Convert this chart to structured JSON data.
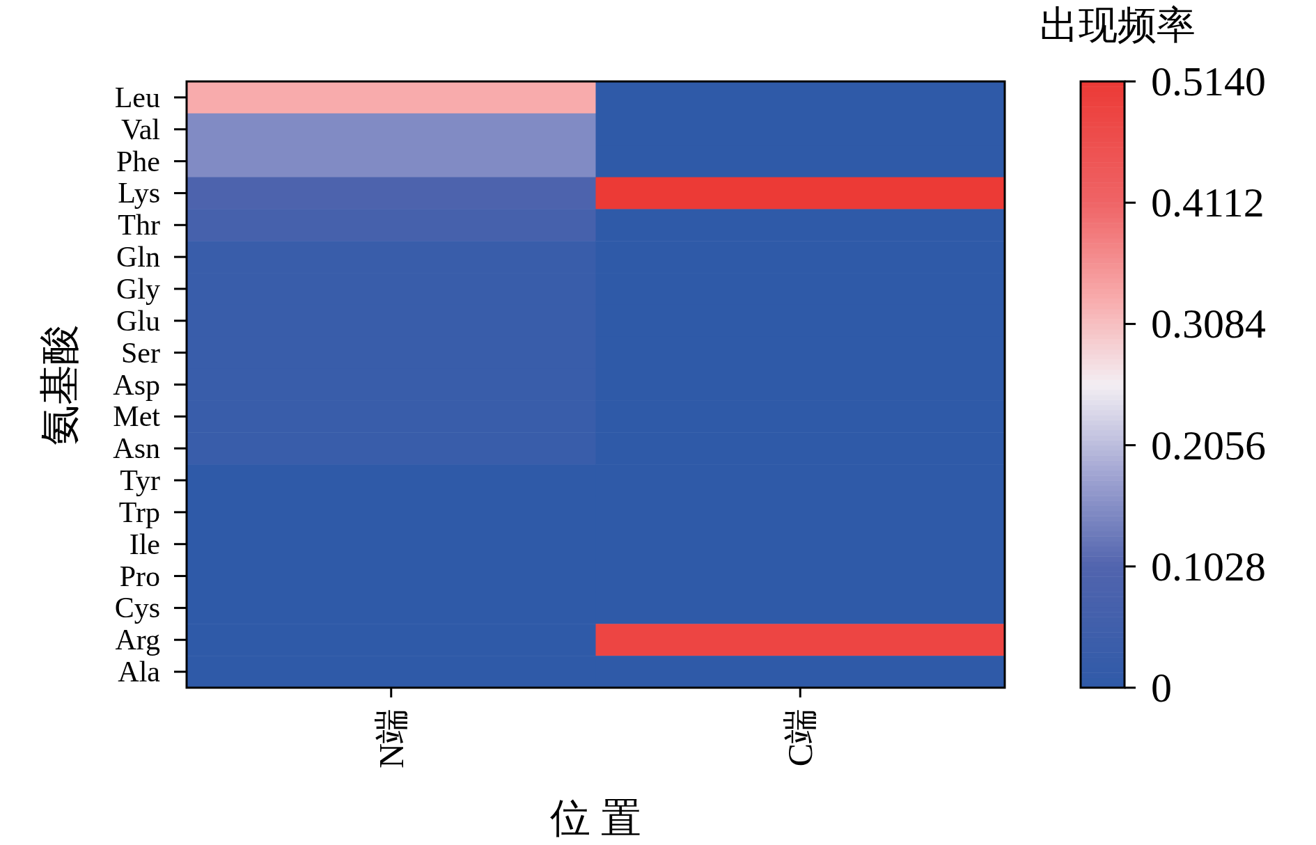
{
  "chart_data": {
    "type": "heatmap",
    "xlabel": "位 置",
    "ylabel": "氨基酸",
    "clabel": "出现频率",
    "categories": [
      "N端",
      "C端"
    ],
    "y_categories": [
      "Leu",
      "Val",
      "Phe",
      "Lys",
      "Thr",
      "Gln",
      "Gly",
      "Glu",
      "Ser",
      "Asp",
      "Met",
      "Asn",
      "Tyr",
      "Trp",
      "Ile",
      "Pro",
      "Cys",
      "Arg",
      "Ala"
    ],
    "cells": [
      [
        0.33,
        0
      ],
      [
        0.15,
        0
      ],
      [
        0.15,
        0
      ],
      [
        0.09,
        0.514
      ],
      [
        0.07,
        0
      ],
      [
        0.03,
        0
      ],
      [
        0.03,
        0
      ],
      [
        0.03,
        0
      ],
      [
        0.03,
        0
      ],
      [
        0.03,
        0
      ],
      [
        0.03,
        0
      ],
      [
        0.03,
        0
      ],
      [
        0,
        0
      ],
      [
        0,
        0
      ],
      [
        0,
        0
      ],
      [
        0,
        0
      ],
      [
        0,
        0
      ],
      [
        0,
        0.486
      ],
      [
        0,
        0
      ]
    ],
    "clim": [
      0,
      0.514
    ],
    "cticks": [
      0,
      0.1028,
      0.2056,
      0.3084,
      0.4112,
      {
        "value": 0.514,
        "label": "0.5140"
      }
    ]
  }
}
